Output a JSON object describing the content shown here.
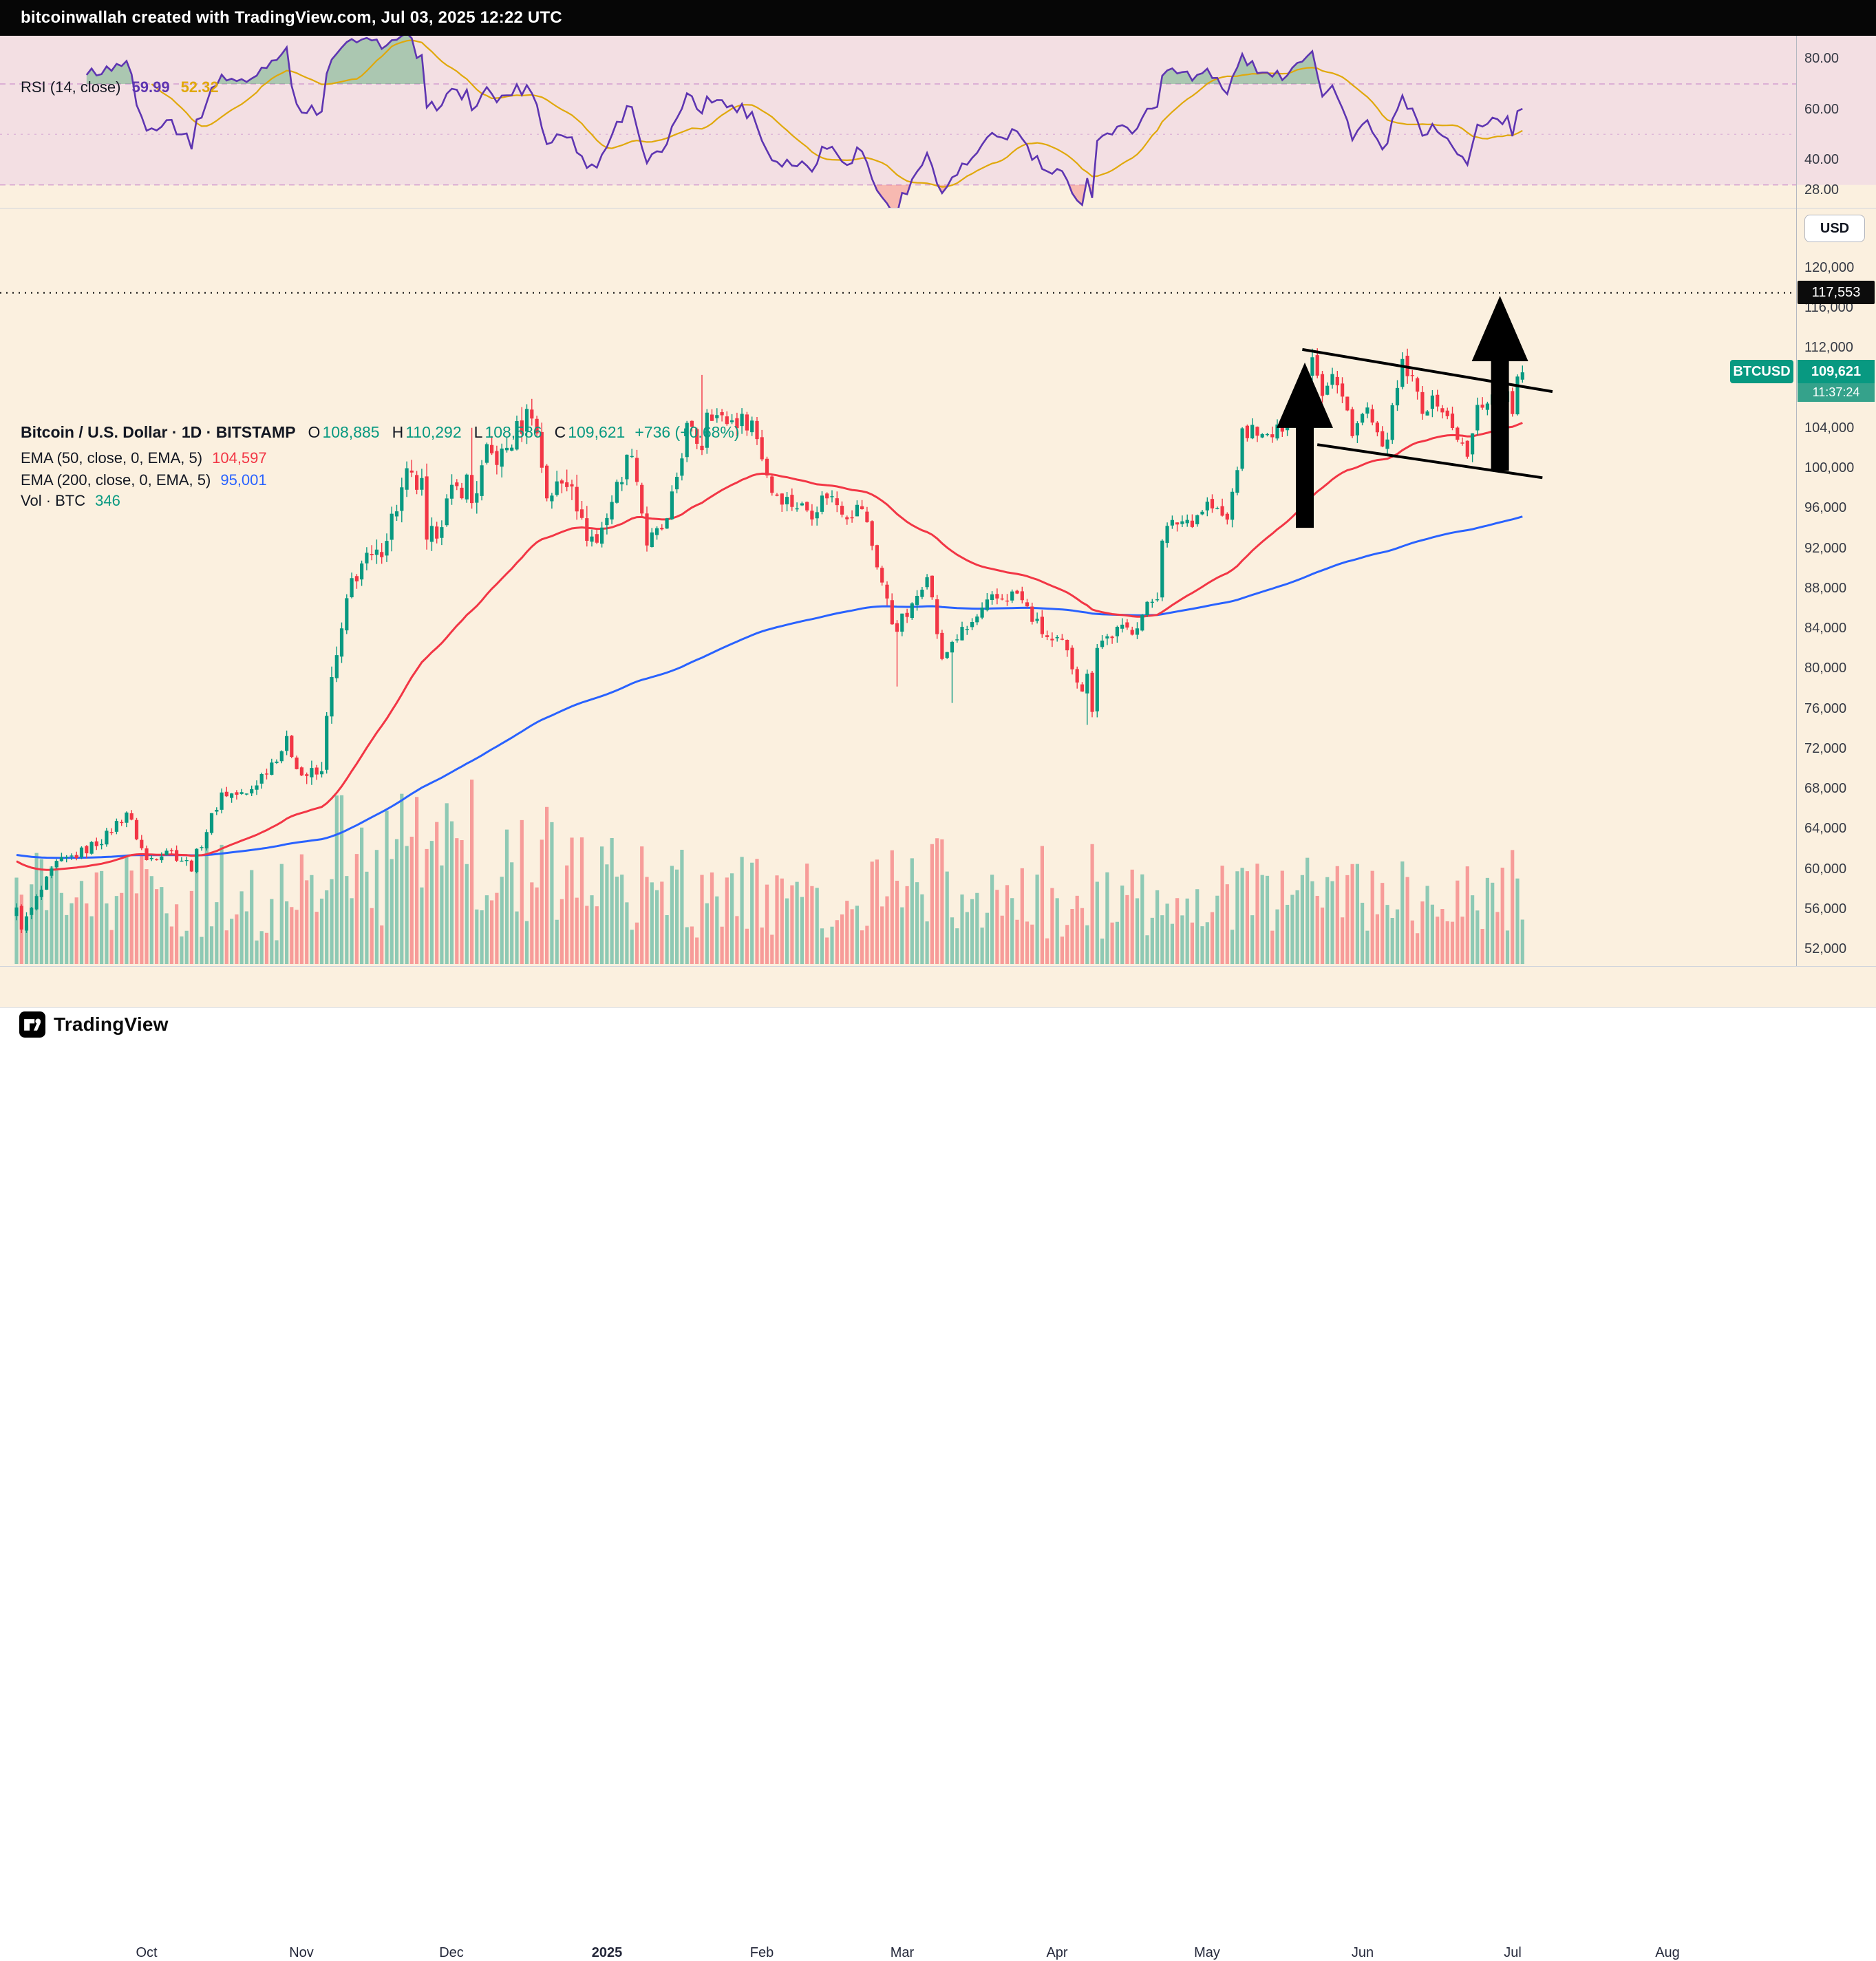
{
  "header": {
    "attribution": "bitcoinwallah created with TradingView.com, Jul 03, 2025 12:22 UTC"
  },
  "footer": {
    "brand": "TradingView"
  },
  "colors": {
    "up": "#089981",
    "down": "#F23645",
    "vol_up": "rgba(8,153,129,0.45)",
    "vol_down": "rgba(242,54,69,0.45)",
    "ema50": "#F23645",
    "ema200": "#2962FF",
    "rsi": "#5E35B1",
    "rsi_ma": "#E0A80B",
    "rsi_band_fill": "#F3DFE3",
    "overbought_fill": "rgba(56,160,97,0.38)",
    "oversold_fill": "rgba(242,84,91,0.35)",
    "main_bg": "#FBF0DF",
    "tag_symbol_bg": "#089981",
    "tag_countdown_bg": "#35A28B",
    "alert_tag_bg": "#0C0C0C",
    "drawing_color": "#000000"
  },
  "rsi_pane": {
    "legend": {
      "title": "RSI (14, close)",
      "value_rsi": "59.99",
      "value_ma": "52.32"
    },
    "axis_labels": [
      {
        "value": 80,
        "text": "80.00"
      },
      {
        "value": 60,
        "text": "60.00"
      },
      {
        "value": 40,
        "text": "40.00"
      },
      {
        "value": 28,
        "text": "28.00"
      }
    ],
    "bands": {
      "upper": 70,
      "middle": 50,
      "lower": 30
    }
  },
  "main_pane": {
    "legend": {
      "symbol_title": "Bitcoin / U.S. Dollar · 1D · BITSTAMP",
      "ohlc": {
        "o_label": "O",
        "o": "108,885",
        "h_label": "H",
        "h": "110,292",
        "l_label": "L",
        "l": "108,586",
        "c_label": "C",
        "c": "109,621",
        "change": "+736 (+0.68%)"
      },
      "ema50": {
        "label": "EMA (50, close, 0, EMA, 5)",
        "value": "104,597"
      },
      "ema200": {
        "label": "EMA (200, close, 0, EMA, 5)",
        "value": "95,001"
      },
      "vol": {
        "label": "Vol · BTC",
        "value": "346"
      }
    },
    "usd_button": "USD",
    "price_axis": {
      "labels": [
        {
          "value": 120000,
          "text": "120,000"
        },
        {
          "value": 116000,
          "text": "116,000"
        },
        {
          "value": 112000,
          "text": "112,000"
        },
        {
          "value": 104000,
          "text": "104,000"
        },
        {
          "value": 100000,
          "text": "100,000"
        },
        {
          "value": 96000,
          "text": "96,000"
        },
        {
          "value": 92000,
          "text": "92,000"
        },
        {
          "value": 88000,
          "text": "88,000"
        },
        {
          "value": 84000,
          "text": "84,000"
        },
        {
          "value": 80000,
          "text": "80,000"
        },
        {
          "value": 76000,
          "text": "76,000"
        },
        {
          "value": 72000,
          "text": "72,000"
        },
        {
          "value": 68000,
          "text": "68,000"
        },
        {
          "value": 64000,
          "text": "64,000"
        },
        {
          "value": 60000,
          "text": "60,000"
        },
        {
          "value": 56000,
          "text": "56,000"
        },
        {
          "value": 52000,
          "text": "52,000"
        }
      ],
      "alert_tag": {
        "text": "117,553",
        "value": 117553
      },
      "symbol_tag": {
        "symbol": "BTCUSD",
        "price": "109,621",
        "countdown": "11:37:24"
      }
    },
    "time_axis": [
      {
        "day": 26,
        "text": "Oct"
      },
      {
        "day": 57,
        "text": "Nov"
      },
      {
        "day": 87,
        "text": "Dec"
      },
      {
        "day": 118,
        "text": "2025",
        "bold": true
      },
      {
        "day": 149,
        "text": "Feb"
      },
      {
        "day": 177,
        "text": "Mar"
      },
      {
        "day": 208,
        "text": "Apr"
      },
      {
        "day": 238,
        "text": "May"
      },
      {
        "day": 269,
        "text": "Jun"
      },
      {
        "day": 299,
        "text": "Jul"
      },
      {
        "day": 330,
        "text": "Aug"
      }
    ]
  },
  "drawings": {
    "arrows": [
      {
        "day": 257.5,
        "price_top": 110600,
        "price_bottom": 94100
      },
      {
        "day": 296.5,
        "price_top": 117250,
        "price_bottom": 99800
      }
    ],
    "trendlines": [
      {
        "from": {
          "day": 257,
          "price": 111900
        },
        "to": {
          "day": 307,
          "price": 107700
        }
      },
      {
        "from": {
          "day": 260,
          "price": 102400
        },
        "to": {
          "day": 305,
          "price": 99100
        }
      }
    ],
    "alert_level": 117553
  },
  "chart_data": {
    "type": "candlestick",
    "symbol": "BTCUSD",
    "exchange": "BITSTAMP",
    "interval": "1D",
    "currency": "USD",
    "start_date": "2024-09-05",
    "end_date": "2025-07-03",
    "days": 302,
    "ylim": [
      50200,
      126000
    ],
    "last_candle": {
      "open": 108885,
      "high": 110292,
      "low": 108586,
      "close": 109621
    },
    "indicators": {
      "rsi_14": 59.99,
      "rsi_ma": 52.32,
      "ema_50": 104597,
      "ema_200": 95001,
      "ema_seed_50": 61000,
      "ema_seed_200": 61500,
      "volume_btc": 346
    },
    "alert_level": 117553,
    "price_anchors": [
      [
        0,
        56200
      ],
      [
        1,
        54000
      ],
      [
        4,
        57050
      ],
      [
        8,
        60500
      ],
      [
        13,
        61700
      ],
      [
        18,
        63350
      ],
      [
        22,
        65800
      ],
      [
        26,
        60840
      ],
      [
        30,
        62100
      ],
      [
        35,
        60300
      ],
      [
        41,
        67600
      ],
      [
        46,
        67400
      ],
      [
        54,
        72700
      ],
      [
        57,
        69480
      ],
      [
        61,
        69400
      ],
      [
        62,
        76000
      ],
      [
        67,
        88700
      ],
      [
        69,
        90500
      ],
      [
        72,
        91000
      ],
      [
        78,
        99000
      ],
      [
        81,
        98000
      ],
      [
        82,
        91980
      ],
      [
        86,
        96400
      ],
      [
        87,
        97280
      ],
      [
        90,
        98770
      ],
      [
        91,
        96590
      ],
      [
        94,
        101240
      ],
      [
        97,
        101170
      ],
      [
        103,
        106140
      ],
      [
        106,
        97470
      ],
      [
        110,
        98700
      ],
      [
        111,
        99300
      ],
      [
        113,
        94160
      ],
      [
        116,
        92640
      ],
      [
        119,
        96890
      ],
      [
        123,
        102080
      ],
      [
        126,
        92550
      ],
      [
        130,
        94500
      ],
      [
        134,
        104000
      ],
      [
        137,
        102260
      ],
      [
        138,
        106150
      ],
      [
        141,
        104800
      ],
      [
        147,
        104720
      ],
      [
        151,
        97870
      ],
      [
        155,
        96560
      ],
      [
        159,
        95780
      ],
      [
        162,
        97500
      ],
      [
        166,
        95600
      ],
      [
        169,
        96180
      ],
      [
        173,
        88640
      ],
      [
        175,
        84700
      ],
      [
        176,
        84350
      ],
      [
        179,
        86000
      ],
      [
        182,
        89960
      ],
      [
        185,
        80600
      ],
      [
        187,
        82860
      ],
      [
        190,
        83970
      ],
      [
        195,
        86850
      ],
      [
        200,
        87500
      ],
      [
        204,
        84350
      ],
      [
        207,
        82550
      ],
      [
        209,
        82490
      ],
      [
        213,
        78200
      ],
      [
        214,
        79160
      ],
      [
        215,
        76270
      ],
      [
        216,
        82570
      ],
      [
        220,
        83750
      ],
      [
        223,
        84030
      ],
      [
        228,
        87520
      ],
      [
        229,
        93440
      ],
      [
        232,
        94720
      ],
      [
        235,
        94980
      ],
      [
        238,
        96490
      ],
      [
        242,
        94750
      ],
      [
        245,
        103240
      ],
      [
        248,
        104100
      ],
      [
        249,
        102810
      ],
      [
        252,
        103520
      ],
      [
        255,
        106450
      ],
      [
        258,
        109680
      ],
      [
        259,
        111670
      ],
      [
        261,
        107790
      ],
      [
        263,
        109440
      ],
      [
        266,
        105640
      ],
      [
        267,
        103900
      ],
      [
        270,
        105880
      ],
      [
        273,
        101580
      ],
      [
        275,
        105600
      ],
      [
        277,
        110290
      ],
      [
        279,
        108680
      ],
      [
        281,
        106090
      ],
      [
        284,
        106800
      ],
      [
        286,
        104880
      ],
      [
        288,
        103290
      ],
      [
        290,
        100980
      ],
      [
        292,
        106000
      ],
      [
        294,
        107000
      ],
      [
        296,
        107340
      ],
      [
        298,
        107170
      ],
      [
        299,
        105700
      ],
      [
        300,
        108880
      ],
      [
        301,
        109621
      ]
    ],
    "wick_overrides": [
      {
        "day": 91,
        "high": 104088
      },
      {
        "day": 137,
        "high": 109358
      },
      {
        "day": 176,
        "low": 78248
      },
      {
        "day": 187,
        "low": 76620
      },
      {
        "day": 214,
        "low": 74430
      },
      {
        "day": 259,
        "high": 111980
      }
    ]
  }
}
